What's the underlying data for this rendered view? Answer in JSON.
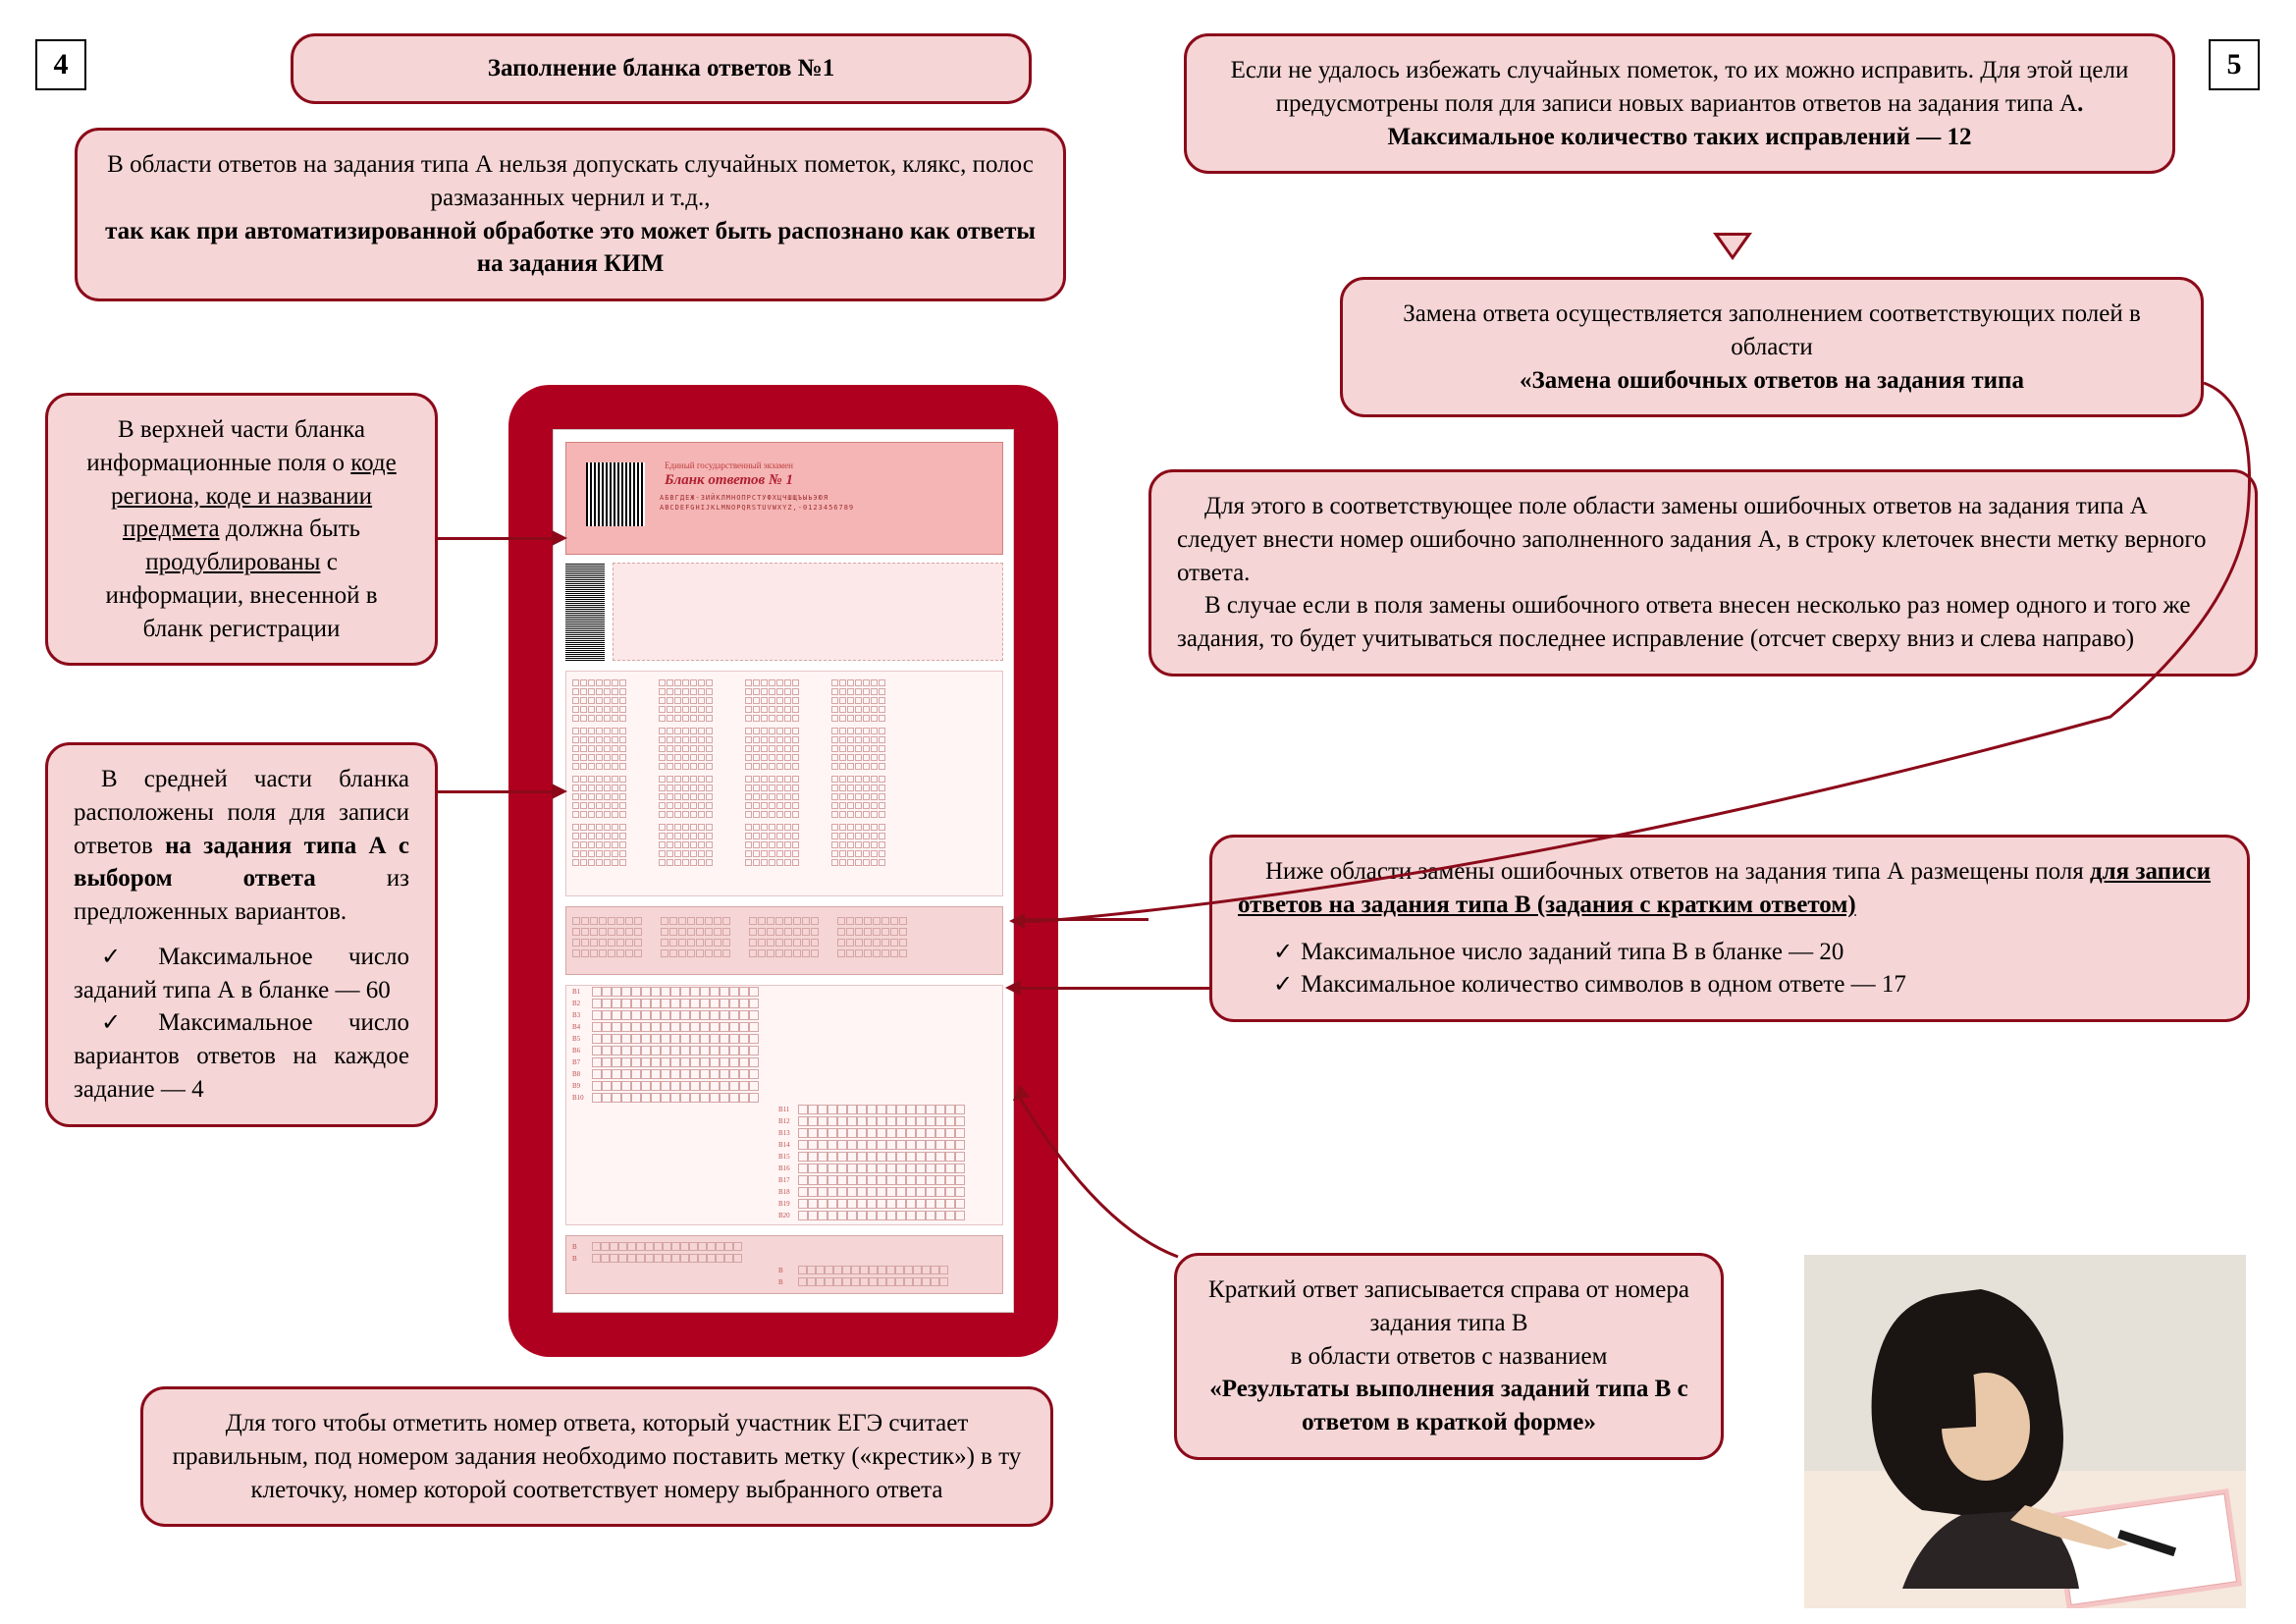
{
  "page_left": "4",
  "page_right": "5",
  "colors": {
    "border": "#8b0a1a",
    "fill": "#f5d5d5",
    "form_bg": "#b00020",
    "photo_bg": "#e8d8c8"
  },
  "title": "Заполнение бланка ответов №1",
  "box_a": {
    "line1": "В области ответов на задания типа А нельзя допускать случайных пометок, клякс, полос размазанных чернил и т.д.,",
    "line2": "так как при автоматизированной обработке это может быть распознано как ответы на задания КИМ"
  },
  "box_top_left": {
    "l1": "В верхней части бланка информационные поля о ",
    "l2": "коде региона, коде и названии предмета",
    "l3": " должна быть ",
    "l4": "продублированы",
    "l5": " с информации, внесенной в бланк регистрации"
  },
  "box_mid_left": {
    "l1": "В средней части бланка расположены поля для записи ответов ",
    "l2": "на задания типа А с выбором ответа",
    "l3": " из предложенных вариан­тов.",
    "b1": "Максимальное число заданий типа А в бланке — 60",
    "b2": "Максимальное число вариантов ответов на каждое задание — 4"
  },
  "box_bottom_left": "Для того чтобы отметить номер ответа, который участник ЕГЭ считает правильным, под номером задания необходимо поставить метку («крестик») в ту клеточку, номер которой соответствует номеру выбранного ответа",
  "box_r1": {
    "l1": "Если не удалось избежать случайных пометок, то их можно исправить. Для этой цели предусмотрены поля для записи новых вариантов ответов на задания типа А",
    "l2": ". Максимальное количество таких исправлений — 12"
  },
  "box_r2": {
    "l1": "Замена ответа осуществляется заполнением соответствующих полей в области",
    "l2": "«Замена ошибочных ответов на задания типа"
  },
  "box_r3": {
    "p1": "Для этого в соответствующее поле области замены ошибочных ответов на задания типа А следует внести номер ошибочно заполненного задания А, в строку клеточек внести метку верного ответа.",
    "p2": "В случае если в поля замены ошибочного ответа внесен несколько раз номер одного и того же задания, то будет учитываться последнее исправление (отсчет сверху вниз и слева направо)"
  },
  "box_r4": {
    "l1": "Ниже области замены ошибочных ответов на задания типа А размещены поля ",
    "l2": "для записи ответов на задания типа В (задания с кратким ответом)",
    "b1": "Максимальное число заданий типа В в бланке — 20",
    "b2": "Максимальное количество символов в одном ответе — 17"
  },
  "box_r5": {
    "l1": "Краткий ответ записывается справа от номера задания типа В",
    "l2": "в области ответов с названием",
    "l3": "«Результаты выполнения заданий типа В с ответом в краткой форме»"
  },
  "form": {
    "header_title": "Единый государственный экзамен",
    "blank_label": "Бланк ответов № 1",
    "alphabet1": "АБВГДЕЖ-ЗИЙКЛМНОПРСТУФХЦЧШЩЪЫЬЭЮЯ",
    "alphabet2": "ABCDEFGHIJKLMNOPQRSTUVWXYZ,-0123456789"
  }
}
